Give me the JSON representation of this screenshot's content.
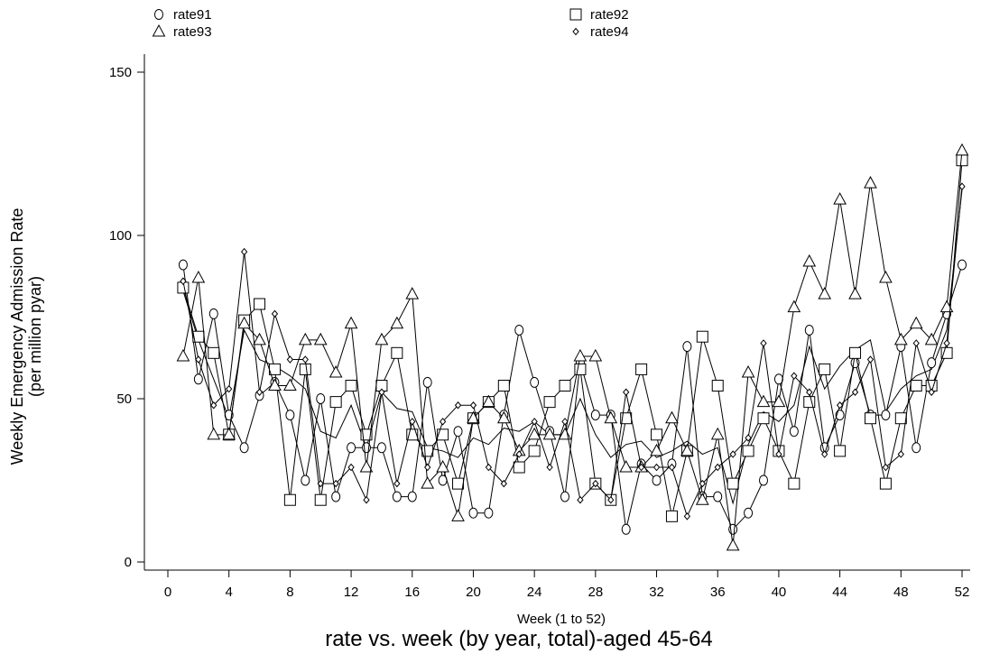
{
  "chart_data": {
    "type": "line",
    "title": "rate vs. week (by year, total)-aged 45-64",
    "xlabel": "Week (1 to 52)",
    "ylabel_line1": "Weekly Emergency Admission Rate",
    "ylabel_line2": "(per million pyar)",
    "xlim": [
      0,
      52
    ],
    "ylim": [
      0,
      150
    ],
    "xticks": [
      0,
      4,
      8,
      12,
      16,
      20,
      24,
      28,
      32,
      36,
      40,
      44,
      48,
      52
    ],
    "yticks": [
      0,
      50,
      100,
      150
    ],
    "grid": false,
    "legend_position": "top",
    "x": [
      1,
      2,
      3,
      4,
      5,
      6,
      7,
      8,
      9,
      10,
      11,
      12,
      13,
      14,
      15,
      16,
      17,
      18,
      19,
      20,
      21,
      22,
      23,
      24,
      25,
      26,
      27,
      28,
      29,
      30,
      31,
      32,
      33,
      34,
      35,
      36,
      37,
      38,
      39,
      40,
      41,
      42,
      43,
      44,
      45,
      46,
      47,
      48,
      49,
      50,
      51,
      52
    ],
    "series": [
      {
        "name": "rate91",
        "marker": "circle",
        "values": [
          91,
          56,
          76,
          45,
          35,
          51,
          55,
          45,
          25,
          50,
          20,
          35,
          35,
          35,
          20,
          20,
          55,
          25,
          40,
          15,
          15,
          45,
          71,
          55,
          40,
          20,
          61,
          45,
          45,
          10,
          30,
          25,
          30,
          66,
          20,
          20,
          10,
          15,
          25,
          56,
          40,
          71,
          35,
          45,
          61,
          45,
          45,
          66,
          35,
          61,
          76,
          91
        ]
      },
      {
        "name": "rate92",
        "marker": "square",
        "values": [
          84,
          69,
          64,
          39,
          74,
          79,
          59,
          19,
          59,
          19,
          49,
          54,
          39,
          54,
          64,
          39,
          34,
          39,
          24,
          44,
          49,
          54,
          29,
          34,
          49,
          54,
          59,
          24,
          19,
          44,
          59,
          39,
          14,
          34,
          69,
          54,
          24,
          34,
          44,
          34,
          24,
          49,
          59,
          34,
          64,
          44,
          24,
          44,
          54,
          54,
          64,
          123
        ]
      },
      {
        "name": "rate93",
        "marker": "triangle",
        "values": [
          63,
          87,
          39,
          39,
          73,
          68,
          54,
          54,
          68,
          68,
          58,
          73,
          29,
          68,
          73,
          82,
          24,
          29,
          14,
          44,
          49,
          44,
          34,
          39,
          39,
          39,
          63,
          63,
          44,
          29,
          29,
          34,
          44,
          34,
          19,
          39,
          5,
          58,
          49,
          49,
          78,
          92,
          82,
          111,
          82,
          116,
          87,
          68,
          73,
          68,
          78,
          126
        ]
      },
      {
        "name": "rate94",
        "marker": "diamond",
        "values": [
          86,
          62,
          48,
          53,
          95,
          52,
          76,
          62,
          62,
          24,
          24,
          29,
          19,
          52,
          24,
          43,
          29,
          43,
          48,
          48,
          29,
          24,
          33,
          43,
          29,
          43,
          19,
          24,
          19,
          52,
          29,
          29,
          29,
          14,
          24,
          29,
          33,
          38,
          67,
          33,
          57,
          52,
          33,
          48,
          52,
          62,
          29,
          33,
          67,
          52,
          67,
          115
        ]
      }
    ],
    "mean_series": {
      "values": [
        83,
        68,
        56,
        44,
        71,
        62,
        60,
        57,
        53,
        40,
        38,
        48,
        35,
        52,
        47,
        46,
        35,
        34,
        32,
        38,
        36,
        41,
        40,
        43,
        39,
        39,
        50,
        39,
        32,
        36,
        37,
        32,
        34,
        37,
        33,
        35,
        18,
        36,
        46,
        43,
        48,
        66,
        53,
        60,
        65,
        68,
        46,
        53,
        57,
        59,
        71,
        114
      ]
    }
  }
}
